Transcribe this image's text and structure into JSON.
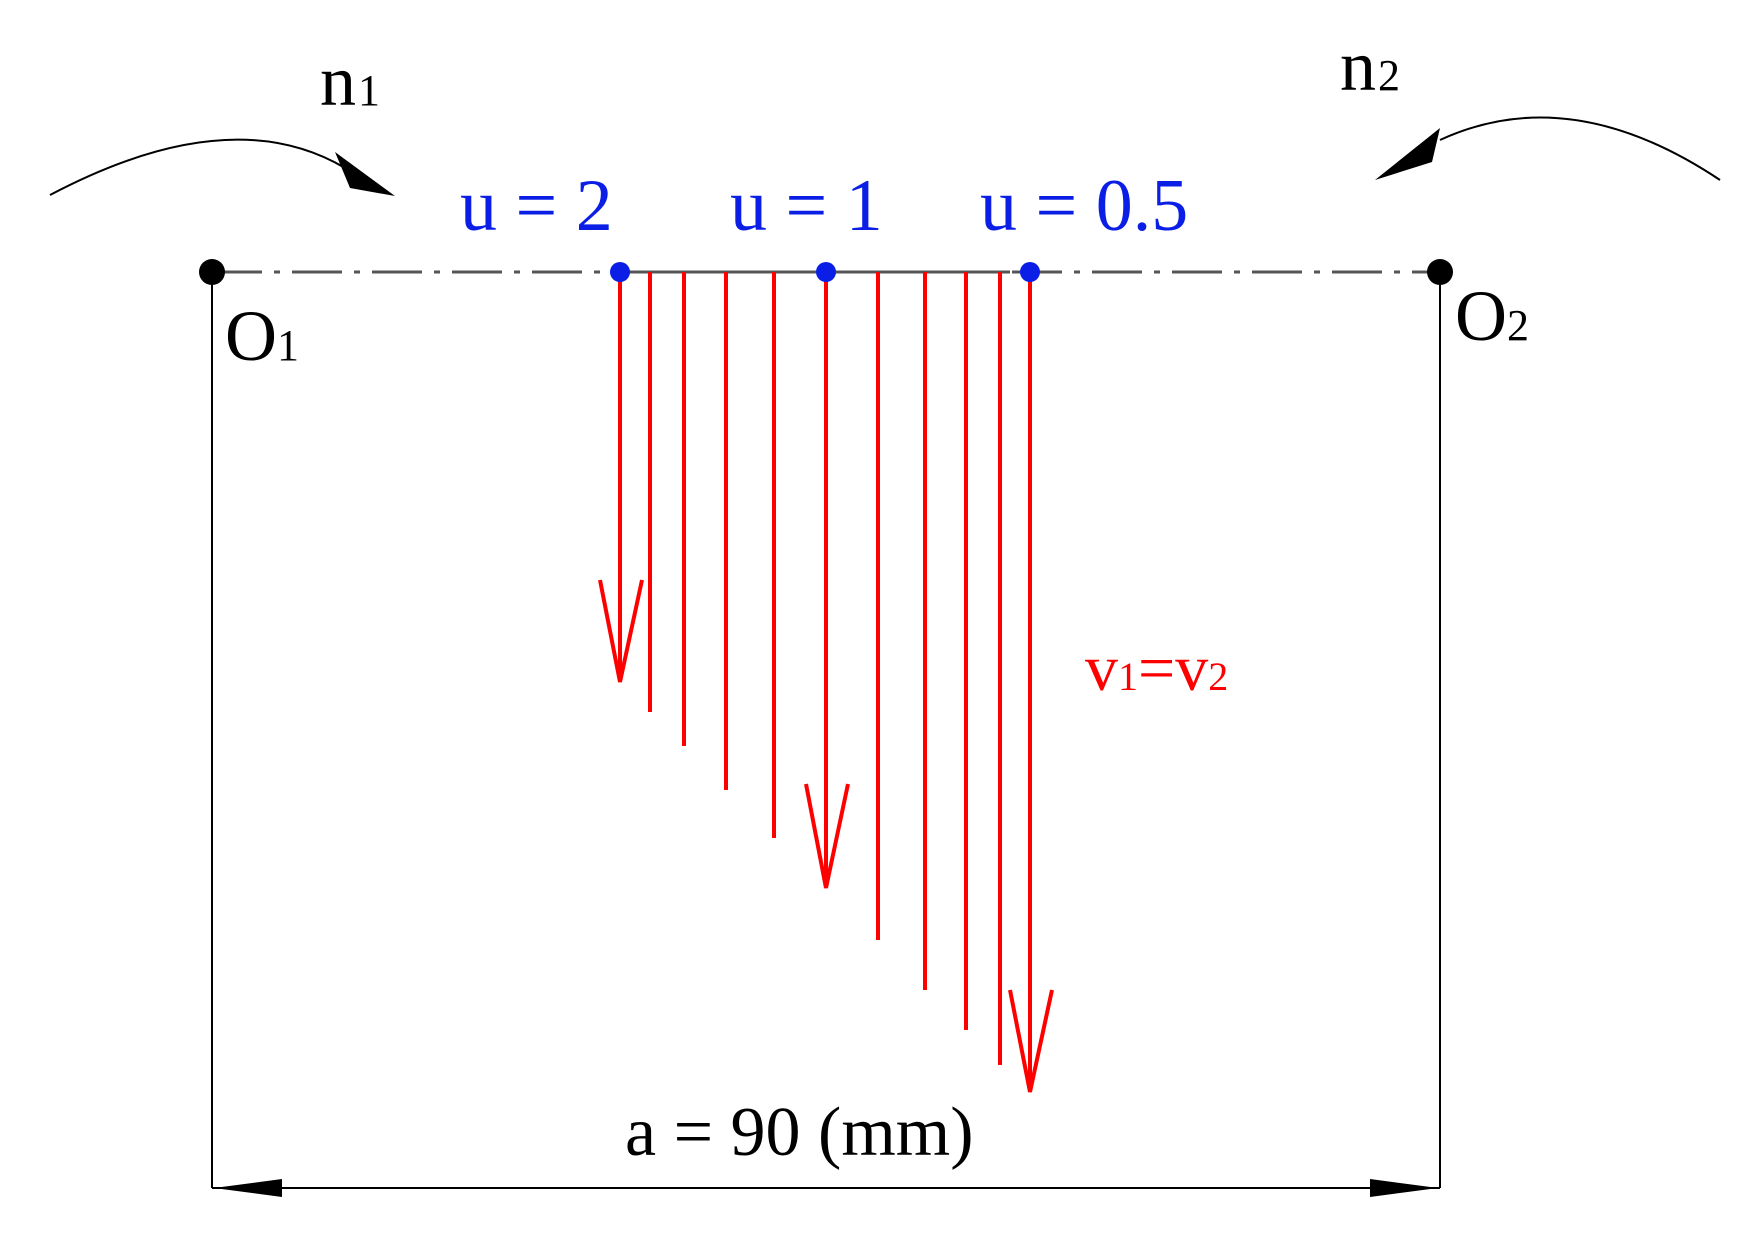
{
  "rotation_labels": {
    "n1": {
      "main": "n",
      "sub": "1"
    },
    "n2": {
      "main": "n",
      "sub": "2"
    }
  },
  "centers": {
    "o1": {
      "main": "O",
      "sub": "1"
    },
    "o2": {
      "main": "O",
      "sub": "2"
    }
  },
  "ratio_labels": [
    "u = 2",
    "u = 1",
    "u = 0.5"
  ],
  "velocity_label": {
    "v1": "v",
    "sub1": "1",
    "eq": "=",
    "v2": "v",
    "sub2": "2"
  },
  "center_distance_label": "a = 90 (mm)",
  "colors": {
    "ratio_points": "#0a1ee6",
    "velocity_vectors": "#ff0000",
    "dimension_lines": "#000000",
    "center_line": "#555555"
  }
}
